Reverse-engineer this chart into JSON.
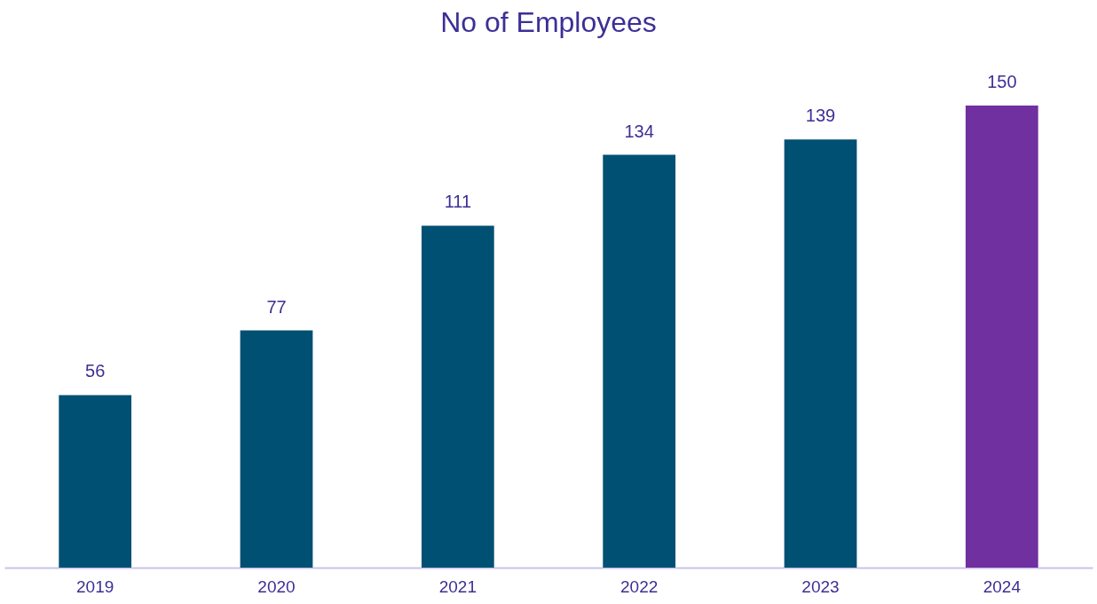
{
  "chart_data": {
    "type": "bar",
    "title": "No of Employees",
    "categories": [
      "2019",
      "2020",
      "2021",
      "2022",
      "2023",
      "2024"
    ],
    "values": [
      56,
      77,
      111,
      134,
      139,
      150
    ],
    "colors": [
      "#005073",
      "#005073",
      "#005073",
      "#005073",
      "#005073",
      "#7030a0"
    ],
    "data_labels": true,
    "grid": false
  }
}
